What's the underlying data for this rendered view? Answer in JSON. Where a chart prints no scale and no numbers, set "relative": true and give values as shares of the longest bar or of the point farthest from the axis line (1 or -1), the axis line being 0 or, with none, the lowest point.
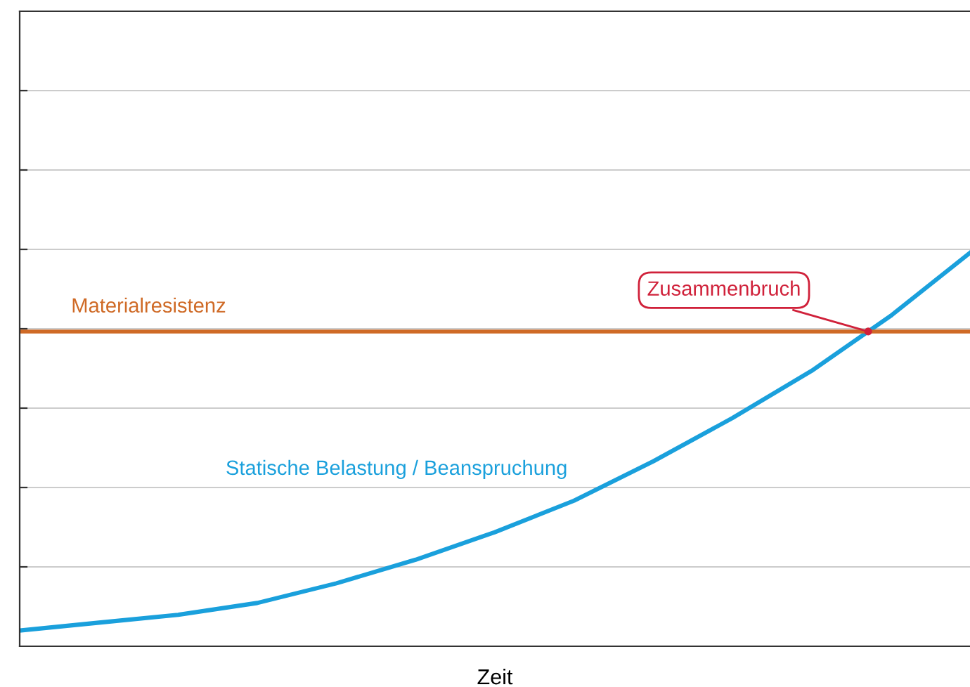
{
  "chart_data": {
    "type": "line",
    "relative": true,
    "xlabel": "Zeit",
    "categories": [
      null,
      null,
      null,
      null,
      null,
      null,
      null,
      null,
      null,
      null,
      null,
      null,
      null
    ],
    "series": [
      {
        "name": "Statische Belastung / Beanspruchung",
        "color": "#1aa0dc",
        "values": [
          0.04,
          0.06,
          0.08,
          0.11,
          0.16,
          0.22,
          0.29,
          0.37,
          0.47,
          0.58,
          0.7,
          0.84,
          1.0
        ]
      }
    ],
    "ref_lines": [
      {
        "axis": "y",
        "value": 0.8,
        "label": "Materialresistenz",
        "color": "#cf6a26",
        "line_style": "solid"
      }
    ],
    "annotations": [
      {
        "text": "Zusammenbruch",
        "y": 0.8
      }
    ],
    "grid": "y",
    "legend": false,
    "marker": "none",
    "line_style": "solid"
  }
}
